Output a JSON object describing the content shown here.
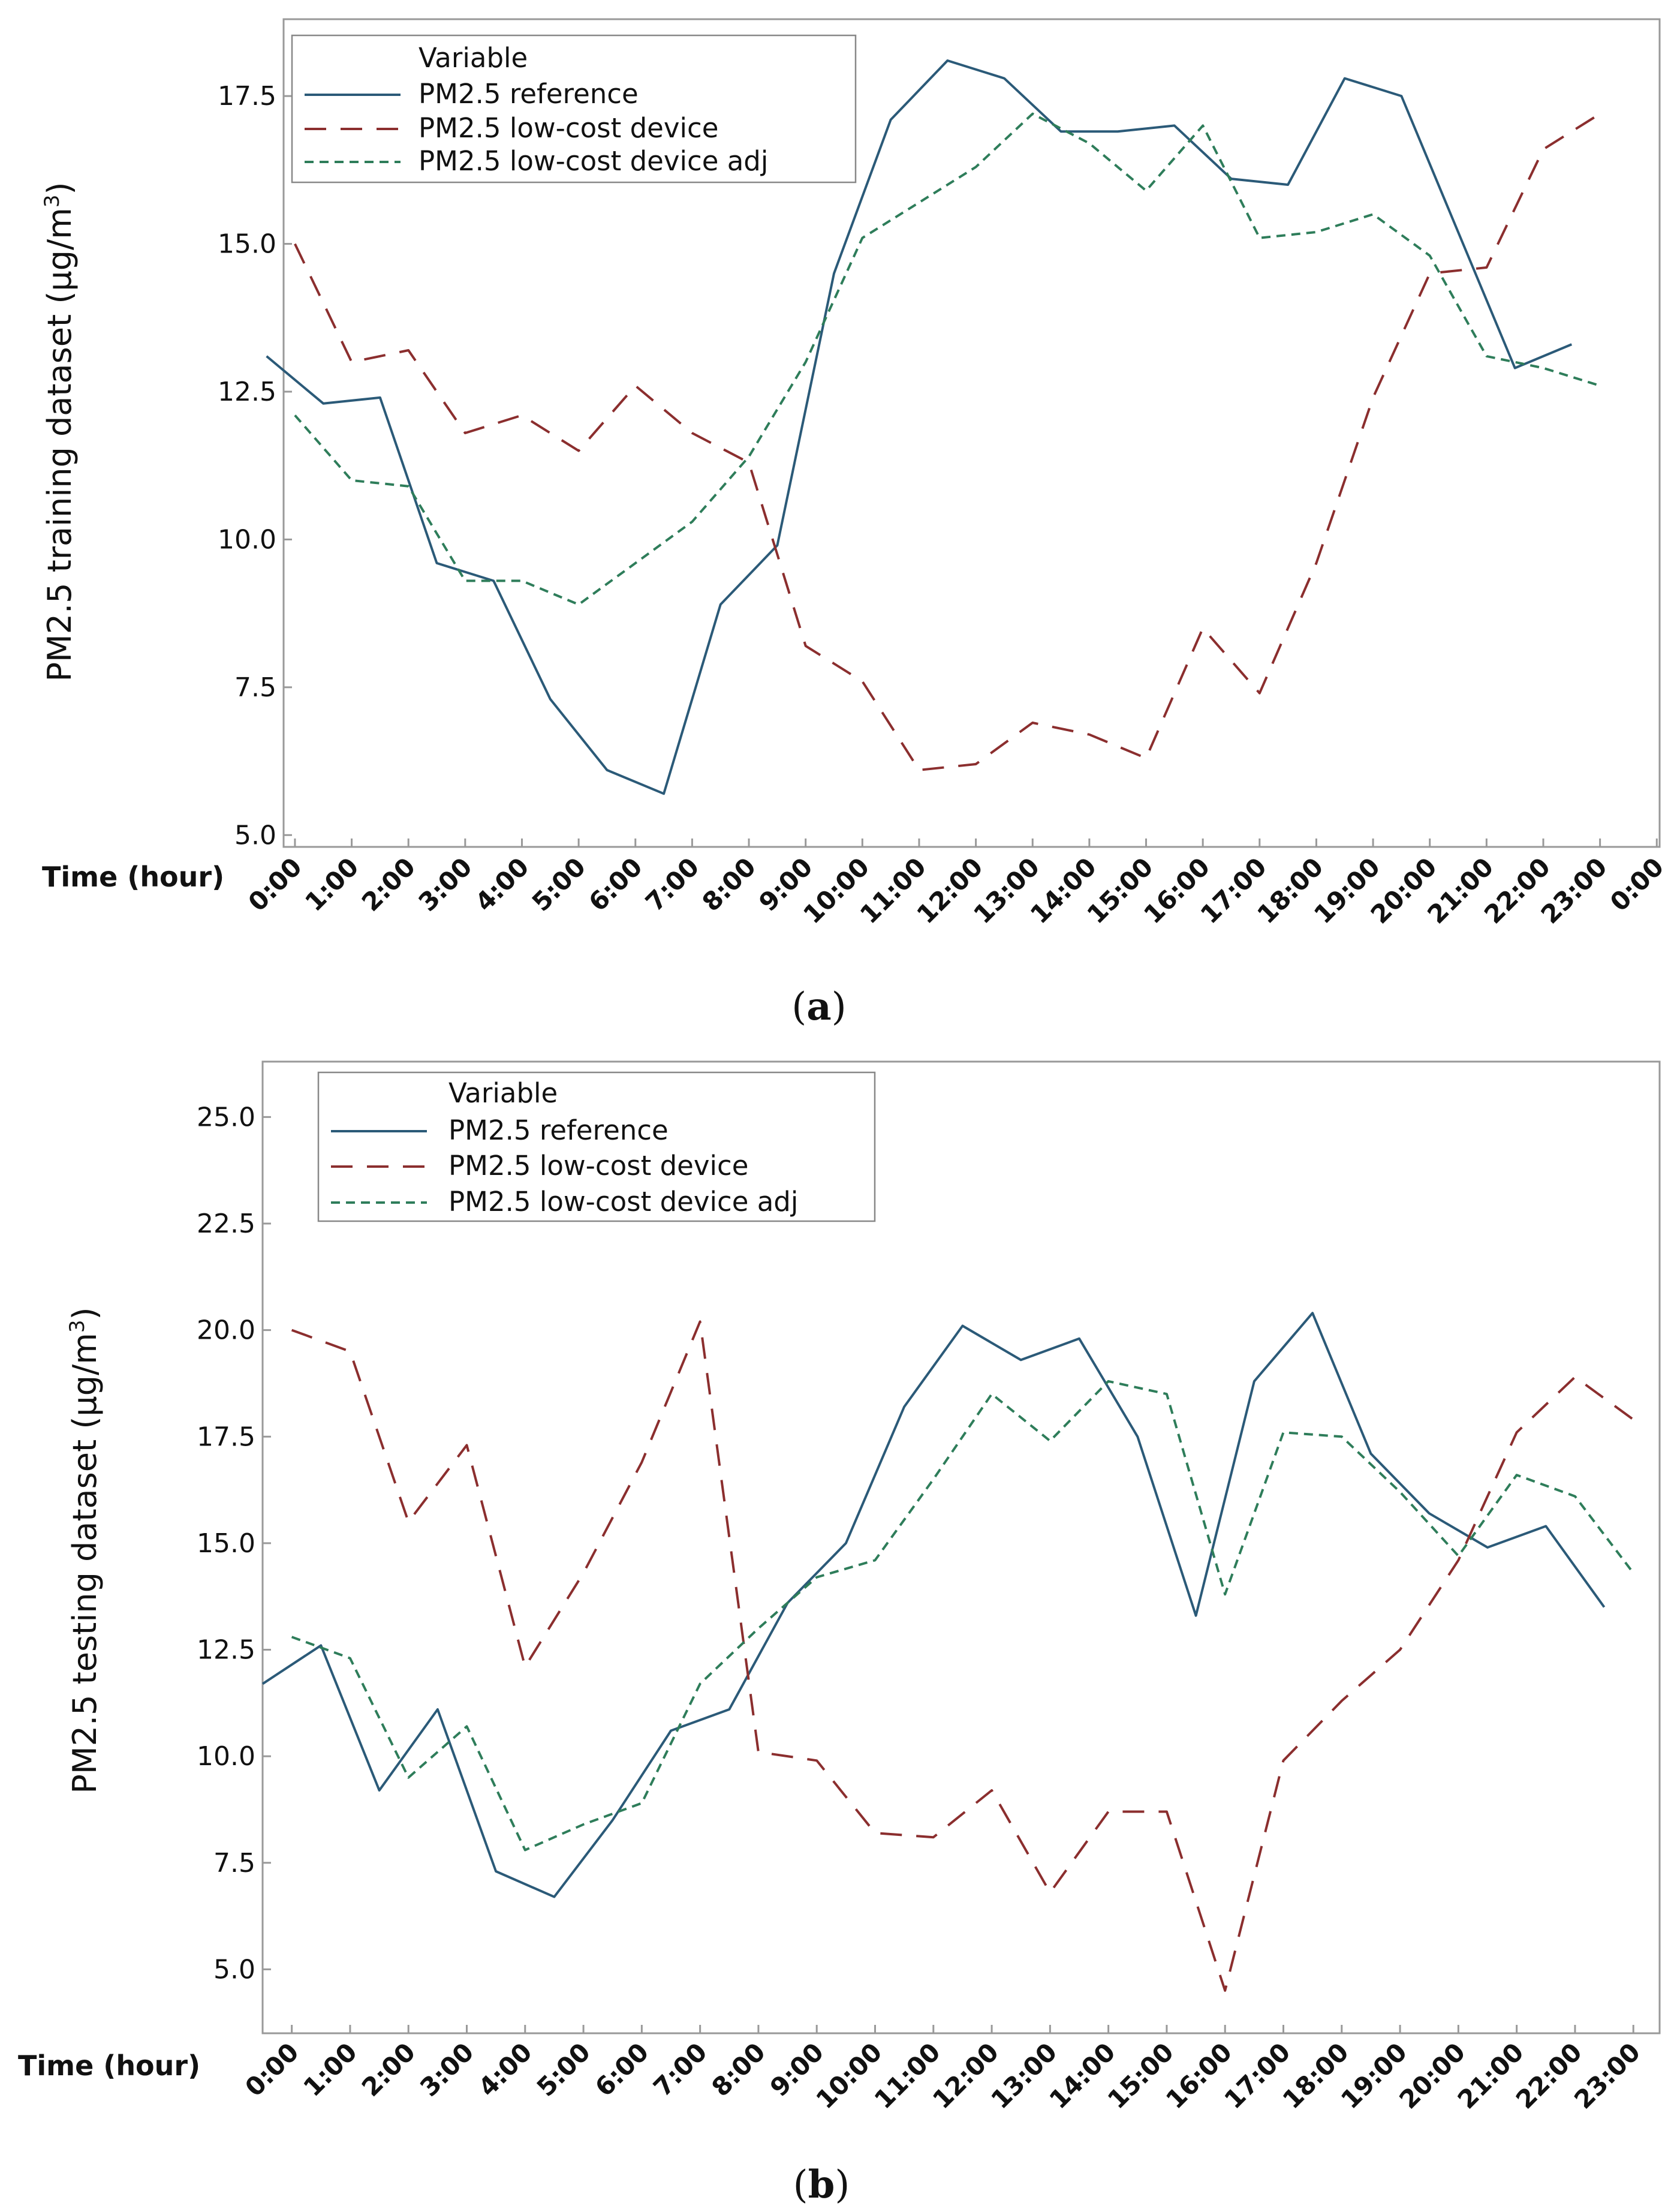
{
  "charts": [
    {
      "caption_open": "(",
      "caption_letter": "a",
      "caption_close": ")",
      "ylabel_main": "PM2.5 training dataset (µg/m",
      "ylabel_sup": "3",
      "ylabel_close": ")"
    },
    {
      "caption_open": "(",
      "caption_letter": "b",
      "caption_close": ")",
      "ylabel_main": "PM2.5 testing dataset (µg/m",
      "ylabel_sup": "3",
      "ylabel_close": ")"
    }
  ],
  "colors": {
    "reference": "#2b5a78",
    "lowcost": "#8b2e2e",
    "adj": "#2e7d5a",
    "axis": "#999999",
    "text": "#111111"
  },
  "chart_data": [
    {
      "type": "line",
      "title": "",
      "xlabel": "Time (hour)",
      "ylabel": "PM2.5 training dataset (µg/m3)",
      "ylim": [
        4.8,
        18.8
      ],
      "xlim": [
        -0.2,
        24.05
      ],
      "yticks": [
        5.0,
        7.5,
        10.0,
        12.5,
        15.0,
        17.5
      ],
      "ytick_labels": [
        "5.0",
        "7.5",
        "10.0",
        "12.5",
        "15.0",
        "17.5"
      ],
      "xticks": [
        0,
        1,
        2,
        3,
        4,
        5,
        6,
        7,
        8,
        9,
        10,
        11,
        12,
        13,
        14,
        15,
        16,
        17,
        18,
        19,
        20,
        21,
        22,
        23,
        24
      ],
      "categories": [
        "0:00",
        "1:00",
        "2:00",
        "3:00",
        "4:00",
        "5:00",
        "6:00",
        "7:00",
        "8:00",
        "9:00",
        "10:00",
        "11:00",
        "12:00",
        "13:00",
        "14:00",
        "15:00",
        "16:00",
        "17:00",
        "18:00",
        "19:00",
        "20:00",
        "21:00",
        "22:00",
        "23:00",
        "0:00"
      ],
      "grid": false,
      "legend": {
        "title": "Variable",
        "placement": "top-left",
        "entries": [
          "PM2.5 reference",
          "PM2.5 low-cost device",
          "PM2.5 low-cost device adj"
        ]
      },
      "series": [
        {
          "name": "PM2.5 reference",
          "style": "solid",
          "color_key": "reference",
          "x": [
            -0.5,
            0.5,
            1.5,
            2.5,
            3.5,
            4.5,
            5.5,
            6.5,
            7.5,
            8.5,
            9.5,
            10.5,
            11.5,
            12.5,
            13.5,
            14.5,
            15.5,
            16.5,
            17.5,
            18.5,
            19.5,
            20.5,
            21.5,
            22.5
          ],
          "values": [
            13.1,
            12.3,
            12.4,
            9.6,
            9.3,
            7.3,
            6.1,
            5.7,
            8.9,
            9.9,
            14.5,
            17.1,
            18.1,
            17.8,
            16.9,
            16.9,
            17.0,
            16.1,
            16.0,
            17.8,
            17.5,
            15.2,
            12.9,
            13.3
          ]
        },
        {
          "name": "PM2.5 low-cost device",
          "style": "dash",
          "color_key": "lowcost",
          "x": [
            0,
            1,
            2,
            3,
            4,
            5,
            6,
            7,
            8,
            9,
            10,
            11,
            12,
            13,
            14,
            15,
            16,
            17,
            18,
            19,
            20,
            21,
            22,
            23
          ],
          "values": [
            15.0,
            13.0,
            13.2,
            11.8,
            12.1,
            11.5,
            12.6,
            11.8,
            11.3,
            8.2,
            7.6,
            6.1,
            6.2,
            6.9,
            6.7,
            6.3,
            8.5,
            7.4,
            9.6,
            12.4,
            14.5,
            14.6,
            16.6,
            17.2
          ]
        },
        {
          "name": "PM2.5 low-cost device adj",
          "style": "shortdash",
          "color_key": "adj",
          "x": [
            0,
            1,
            2,
            3,
            4,
            5,
            6,
            7,
            8,
            9,
            10,
            11,
            12,
            13,
            14,
            15,
            16,
            17,
            18,
            19,
            20,
            21,
            22,
            23
          ],
          "values": [
            12.1,
            11.0,
            10.9,
            9.3,
            9.3,
            8.9,
            9.6,
            10.3,
            11.4,
            13.0,
            15.1,
            15.7,
            16.3,
            17.2,
            16.7,
            15.9,
            17.0,
            15.1,
            15.2,
            15.5,
            14.8,
            13.1,
            12.9,
            12.6
          ]
        }
      ]
    },
    {
      "type": "line",
      "title": "",
      "xlabel": "Time (hour)",
      "ylabel": "PM2.5 testing dataset (µg/m3)",
      "ylim": [
        3.5,
        26.3
      ],
      "xlim": [
        -0.5,
        23.45
      ],
      "yticks": [
        5.0,
        7.5,
        10.0,
        12.5,
        15.0,
        17.5,
        20.0,
        22.5,
        25.0
      ],
      "ytick_labels": [
        "5.0",
        "7.5",
        "10.0",
        "12.5",
        "15.0",
        "17.5",
        "20.0",
        "22.5",
        "25.0"
      ],
      "xticks": [
        0,
        1,
        2,
        3,
        4,
        5,
        6,
        7,
        8,
        9,
        10,
        11,
        12,
        13,
        14,
        15,
        16,
        17,
        18,
        19,
        20,
        21,
        22,
        23
      ],
      "categories": [
        "0:00",
        "1:00",
        "2:00",
        "3:00",
        "4:00",
        "5:00",
        "6:00",
        "7:00",
        "8:00",
        "9:00",
        "10:00",
        "11:00",
        "12:00",
        "13:00",
        "14:00",
        "15:00",
        "16:00",
        "17:00",
        "18:00",
        "19:00",
        "20:00",
        "21:00",
        "22:00",
        "23:00"
      ],
      "grid": false,
      "legend": {
        "title": "Variable",
        "placement": "top-left",
        "entries": [
          "PM2.5 reference",
          "PM2.5 low-cost device",
          "PM2.5 low-cost device adj"
        ]
      },
      "series": [
        {
          "name": "PM2.5 reference",
          "style": "solid",
          "color_key": "reference",
          "x": [
            -0.5,
            0.5,
            1.5,
            2.5,
            3.5,
            4.5,
            5.5,
            6.5,
            7.5,
            8.5,
            9.5,
            10.5,
            11.5,
            12.5,
            13.5,
            14.5,
            15.5,
            16.5,
            17.5,
            18.5,
            19.5,
            20.5,
            21.5,
            22.5
          ],
          "values": [
            11.7,
            12.6,
            9.2,
            11.1,
            7.3,
            6.7,
            8.5,
            10.6,
            11.1,
            13.6,
            15.0,
            18.2,
            20.1,
            19.3,
            19.8,
            17.5,
            13.3,
            18.8,
            20.4,
            17.1,
            15.7,
            14.9,
            15.4,
            13.5
          ]
        },
        {
          "name": "PM2.5 low-cost device",
          "style": "dash",
          "color_key": "lowcost",
          "x": [
            0,
            1,
            2,
            3,
            4,
            5,
            6,
            7,
            8,
            9,
            10,
            11,
            12,
            13,
            14,
            15,
            16,
            17,
            18,
            19,
            20,
            21,
            22,
            23
          ],
          "values": [
            20.0,
            19.5,
            15.5,
            17.3,
            12.1,
            14.3,
            16.9,
            20.2,
            10.1,
            9.9,
            8.2,
            8.1,
            9.2,
            6.8,
            8.7,
            8.7,
            4.5,
            9.9,
            11.3,
            12.5,
            14.6,
            17.6,
            18.9,
            17.9
          ]
        },
        {
          "name": "PM2.5 low-cost device adj",
          "style": "shortdash",
          "color_key": "adj",
          "x": [
            0,
            1,
            2,
            3,
            4,
            5,
            6,
            7,
            8,
            9,
            10,
            11,
            12,
            13,
            14,
            15,
            16,
            17,
            18,
            19,
            20,
            21,
            22,
            23
          ],
          "values": [
            12.8,
            12.3,
            9.5,
            10.7,
            7.8,
            8.4,
            8.9,
            11.7,
            13.0,
            14.2,
            14.6,
            16.5,
            18.5,
            17.4,
            18.8,
            18.5,
            13.8,
            17.6,
            17.5,
            16.2,
            14.7,
            16.6,
            16.1,
            14.3
          ]
        }
      ]
    }
  ]
}
